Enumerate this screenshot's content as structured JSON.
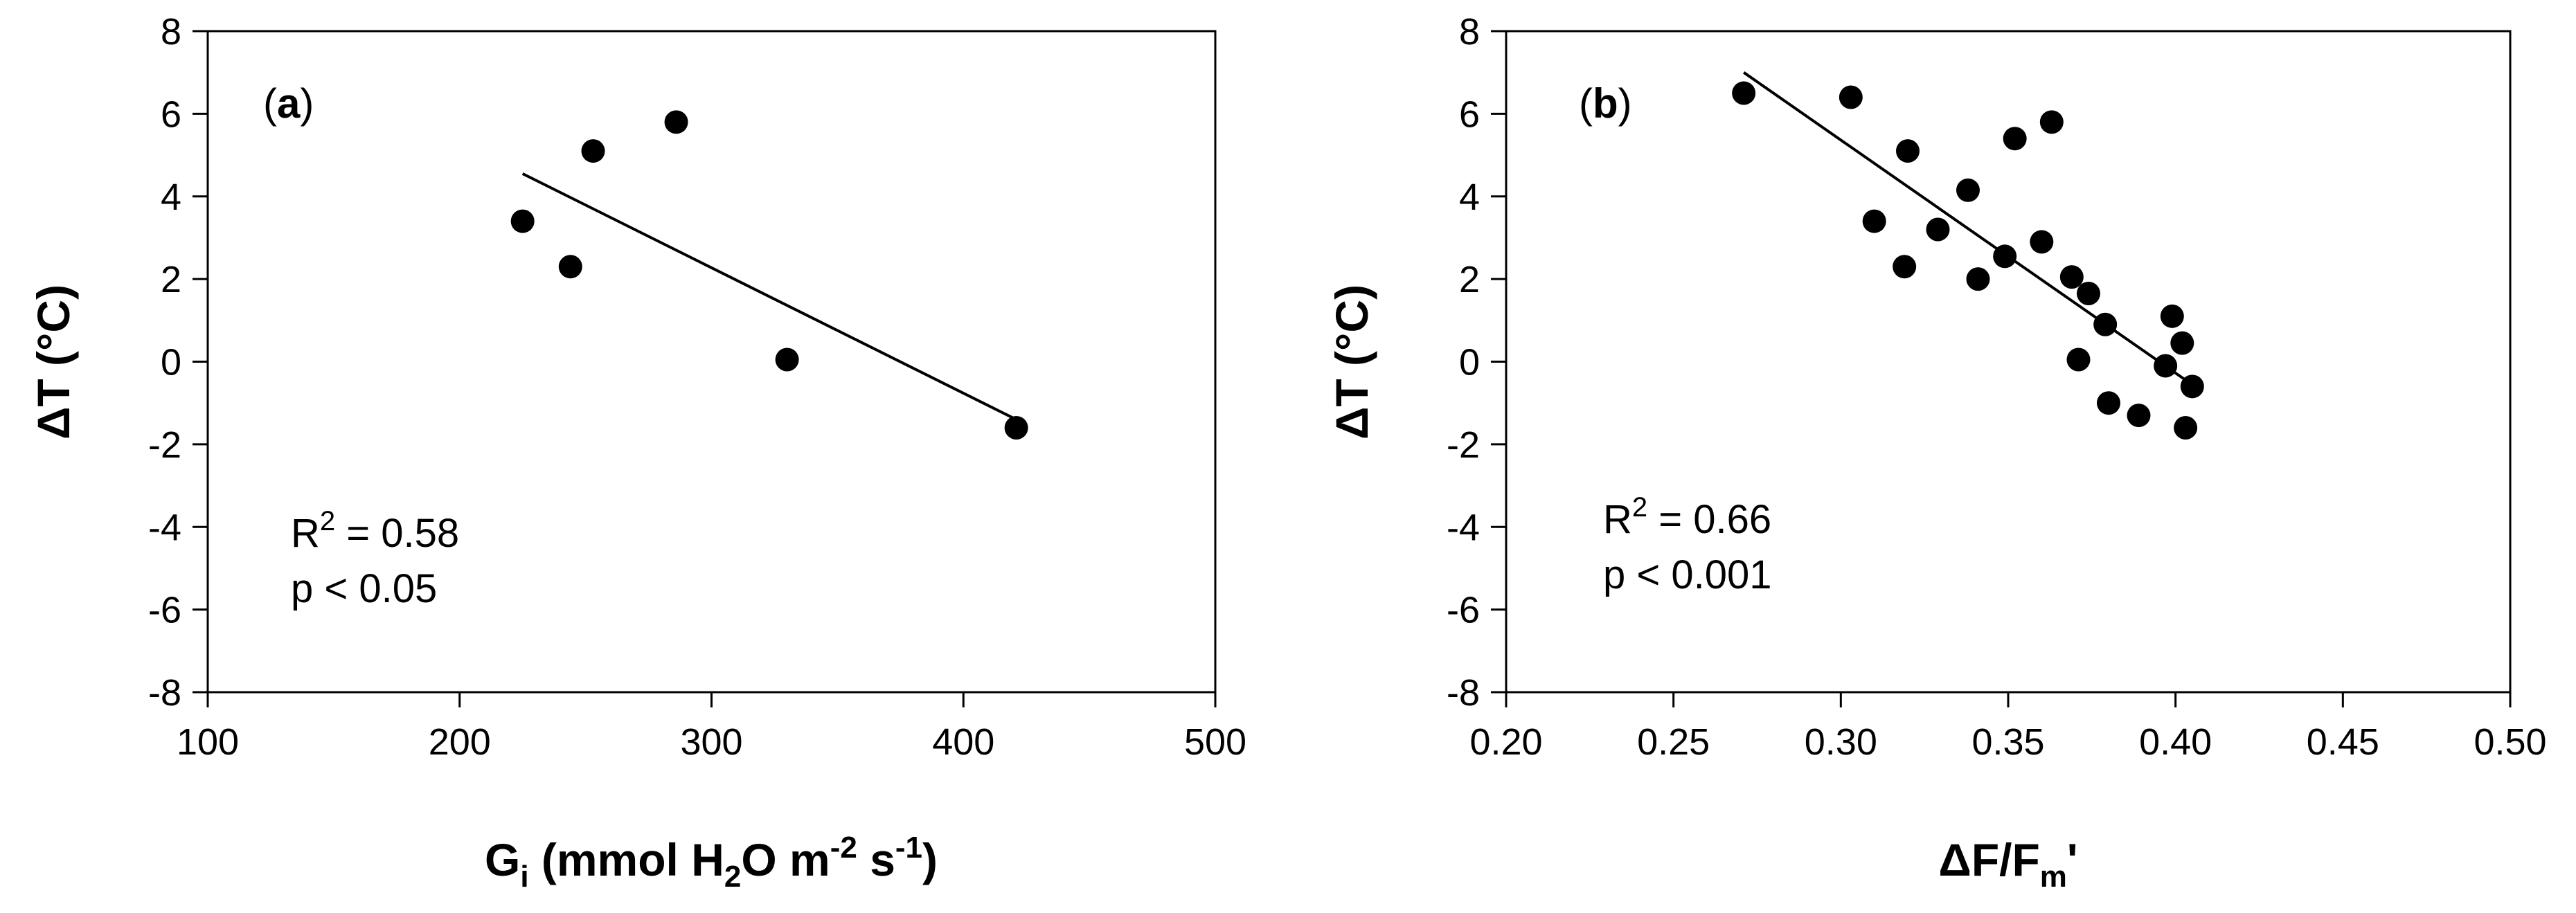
{
  "chart_data": [
    {
      "type": "scatter",
      "panel_label": "a",
      "xlabel": {
        "parts": [
          {
            "text": "G",
            "style": "normal"
          },
          {
            "text": "i",
            "style": "sub"
          },
          {
            "text": " (mmol H",
            "style": "normal"
          },
          {
            "text": "2",
            "style": "sub"
          },
          {
            "text": "O m",
            "style": "normal"
          },
          {
            "text": "-2",
            "style": "sup"
          },
          {
            "text": " s",
            "style": "normal"
          },
          {
            "text": "-1",
            "style": "sup"
          },
          {
            "text": ")",
            "style": "normal"
          }
        ]
      },
      "ylabel": "ΔT (°C)",
      "xlim": [
        100,
        500
      ],
      "ylim": [
        -8,
        8
      ],
      "xticks": [
        100,
        200,
        300,
        400,
        500
      ],
      "xtick_labels": [
        "100",
        "200",
        "300",
        "400",
        "500"
      ],
      "yticks": [
        -8,
        -6,
        -4,
        -2,
        0,
        2,
        4,
        6,
        8
      ],
      "ytick_labels": [
        "-8",
        "-6",
        "-4",
        "-2",
        "0",
        "2",
        "4",
        "6",
        "8"
      ],
      "grid": false,
      "points": [
        {
          "x": 225,
          "y": 3.4
        },
        {
          "x": 244,
          "y": 2.3
        },
        {
          "x": 253,
          "y": 5.1
        },
        {
          "x": 286,
          "y": 5.8
        },
        {
          "x": 330,
          "y": 0.05
        },
        {
          "x": 421,
          "y": -1.6
        }
      ],
      "fit_line": {
        "x": [
          225,
          421
        ],
        "y": [
          4.55,
          -1.4
        ]
      },
      "annotations": {
        "r2_lead": "R",
        "r2_exp": "2",
        "r2_value": " = 0.58",
        "p_text": "p < 0.05"
      }
    },
    {
      "type": "scatter",
      "panel_label": "b",
      "xlabel": {
        "parts": [
          {
            "text": "ΔF/F",
            "style": "normal"
          },
          {
            "text": "m",
            "style": "sub"
          },
          {
            "text": "'",
            "style": "normal"
          }
        ]
      },
      "ylabel": "ΔT (°C)",
      "xlim": [
        0.2,
        0.5
      ],
      "ylim": [
        -8,
        8
      ],
      "xticks": [
        0.2,
        0.25,
        0.3,
        0.35,
        0.4,
        0.45,
        0.5
      ],
      "xtick_labels": [
        "0.20",
        "0.25",
        "0.30",
        "0.35",
        "0.40",
        "0.45",
        "0.50"
      ],
      "yticks": [
        -8,
        -6,
        -4,
        -2,
        0,
        2,
        4,
        6,
        8
      ],
      "ytick_labels": [
        "-8",
        "-6",
        "-4",
        "-2",
        "0",
        "2",
        "4",
        "6",
        "8"
      ],
      "grid": false,
      "points": [
        {
          "x": 0.271,
          "y": 6.5
        },
        {
          "x": 0.303,
          "y": 6.4
        },
        {
          "x": 0.31,
          "y": 3.4
        },
        {
          "x": 0.319,
          "y": 2.3
        },
        {
          "x": 0.32,
          "y": 5.1
        },
        {
          "x": 0.329,
          "y": 3.2
        },
        {
          "x": 0.338,
          "y": 4.15
        },
        {
          "x": 0.341,
          "y": 2.0
        },
        {
          "x": 0.349,
          "y": 2.55
        },
        {
          "x": 0.352,
          "y": 5.4
        },
        {
          "x": 0.36,
          "y": 2.9
        },
        {
          "x": 0.363,
          "y": 5.8
        },
        {
          "x": 0.369,
          "y": 2.05
        },
        {
          "x": 0.371,
          "y": 0.05
        },
        {
          "x": 0.374,
          "y": 1.65
        },
        {
          "x": 0.379,
          "y": 0.9
        },
        {
          "x": 0.38,
          "y": -1.0
        },
        {
          "x": 0.389,
          "y": -1.3
        },
        {
          "x": 0.397,
          "y": -0.1
        },
        {
          "x": 0.399,
          "y": 1.1
        },
        {
          "x": 0.402,
          "y": 0.45
        },
        {
          "x": 0.403,
          "y": -1.6
        },
        {
          "x": 0.405,
          "y": -0.6
        }
      ],
      "fit_line": {
        "x": [
          0.271,
          0.404
        ],
        "y": [
          7.0,
          -0.5
        ]
      },
      "annotations": {
        "r2_lead": "R",
        "r2_exp": "2",
        "r2_value": " = 0.66",
        "p_text": "p < 0.001"
      }
    }
  ]
}
